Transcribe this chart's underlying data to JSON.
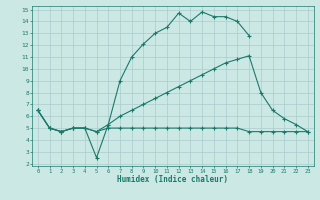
{
  "xlabel": "Humidex (Indice chaleur)",
  "bg_color": "#cce8e4",
  "grid_color": "#aacccc",
  "line_color": "#1a7a6a",
  "xlim": [
    -0.5,
    23.5
  ],
  "ylim": [
    1.8,
    15.3
  ],
  "xticks": [
    0,
    1,
    2,
    3,
    4,
    5,
    6,
    7,
    8,
    9,
    10,
    11,
    12,
    13,
    14,
    15,
    16,
    17,
    18,
    19,
    20,
    21,
    22,
    23
  ],
  "yticks": [
    2,
    3,
    4,
    5,
    6,
    7,
    8,
    9,
    10,
    11,
    12,
    13,
    14,
    15
  ],
  "line1_x": [
    0,
    1,
    2,
    3,
    4,
    5,
    6,
    7,
    8,
    9,
    10,
    11,
    12,
    13,
    14,
    15,
    16,
    17,
    18
  ],
  "line1_y": [
    6.5,
    5.0,
    4.7,
    5.0,
    5.0,
    2.5,
    5.3,
    9.0,
    11.0,
    12.1,
    13.0,
    13.5,
    14.7,
    14.0,
    14.8,
    14.4,
    14.4,
    14.0,
    12.8
  ],
  "line2_x": [
    0,
    1,
    2,
    3,
    4,
    5,
    6,
    7,
    8,
    9,
    10,
    11,
    12,
    13,
    14,
    15,
    16,
    17,
    18,
    19,
    20,
    21,
    22,
    23
  ],
  "line2_y": [
    6.5,
    5.0,
    4.7,
    5.0,
    5.0,
    4.7,
    5.3,
    6.0,
    6.5,
    7.0,
    7.5,
    8.0,
    8.5,
    9.0,
    9.5,
    10.0,
    10.5,
    10.8,
    11.1,
    8.0,
    6.5,
    5.8,
    5.3,
    4.7
  ],
  "line3_x": [
    0,
    1,
    2,
    3,
    4,
    5,
    6,
    7,
    8,
    9,
    10,
    11,
    12,
    13,
    14,
    15,
    16,
    17,
    18,
    19,
    20,
    21,
    22,
    23
  ],
  "line3_y": [
    6.5,
    5.0,
    4.7,
    5.0,
    5.0,
    4.7,
    5.0,
    5.0,
    5.0,
    5.0,
    5.0,
    5.0,
    5.0,
    5.0,
    5.0,
    5.0,
    5.0,
    5.0,
    4.7,
    4.7,
    4.7,
    4.7,
    4.7,
    4.7
  ]
}
